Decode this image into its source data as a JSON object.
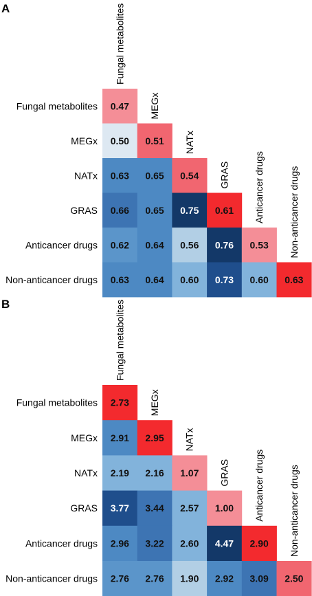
{
  "chart_data": [
    {
      "type": "heatmap",
      "panel": "A",
      "title": "",
      "xlabel": "",
      "ylabel": "",
      "categories": [
        "Fungal metabolites",
        "MEGx",
        "NATx",
        "GRAS",
        "Anticancer drugs",
        "Non-anticancer drugs"
      ],
      "values": [
        [
          0.47
        ],
        [
          0.5,
          0.51
        ],
        [
          0.63,
          0.65,
          0.54
        ],
        [
          0.66,
          0.65,
          0.75,
          0.61
        ],
        [
          0.62,
          0.64,
          0.56,
          0.76,
          0.53
        ],
        [
          0.63,
          0.64,
          0.6,
          0.73,
          0.6,
          0.63
        ]
      ],
      "value_format": "2dp",
      "diagonal_colors": [
        "#f48e97",
        "#f16670",
        "#f16670",
        "#f32a2e",
        "#f48e97",
        "#f32a2e"
      ],
      "offdiag_colors": [
        [],
        [
          "#dde8f2"
        ],
        [
          "#4d89c3",
          "#4d89c3"
        ],
        [
          "#3d74b3",
          "#4d89c3",
          "#133868"
        ],
        [
          "#5b95ca",
          "#4d89c3",
          "#b2cfe5",
          "#133868"
        ],
        [
          "#4d89c3",
          "#4d89c3",
          "#82b3db",
          "#1f4e8c",
          "#82b3db"
        ]
      ]
    },
    {
      "type": "heatmap",
      "panel": "B",
      "title": "",
      "xlabel": "",
      "ylabel": "",
      "categories": [
        "Fungal metabolites",
        "MEGx",
        "NATx",
        "GRAS",
        "Anticancer drugs",
        "Non-anticancer drugs"
      ],
      "values": [
        [
          2.73
        ],
        [
          2.91,
          2.95
        ],
        [
          2.19,
          2.16,
          1.07
        ],
        [
          3.77,
          3.44,
          2.57,
          1.0
        ],
        [
          2.96,
          3.22,
          2.6,
          4.47,
          2.9
        ],
        [
          2.76,
          2.76,
          1.9,
          2.92,
          3.09,
          2.5
        ]
      ],
      "value_format": "2dp",
      "diagonal_colors": [
        "#f32a2e",
        "#f32a2e",
        "#f48e97",
        "#f48e97",
        "#f32a2e",
        "#f16670"
      ],
      "offdiag_colors": [
        [],
        [
          "#4d89c3"
        ],
        [
          "#82b3db",
          "#82b3db"
        ],
        [
          "#1f4e8c",
          "#3d74b3",
          "#82b3db"
        ],
        [
          "#4d89c3",
          "#3d74b3",
          "#82b3db",
          "#133868"
        ],
        [
          "#5b95ca",
          "#5b95ca",
          "#b2cfe5",
          "#4d89c3",
          "#3d74b3"
        ]
      ]
    }
  ]
}
